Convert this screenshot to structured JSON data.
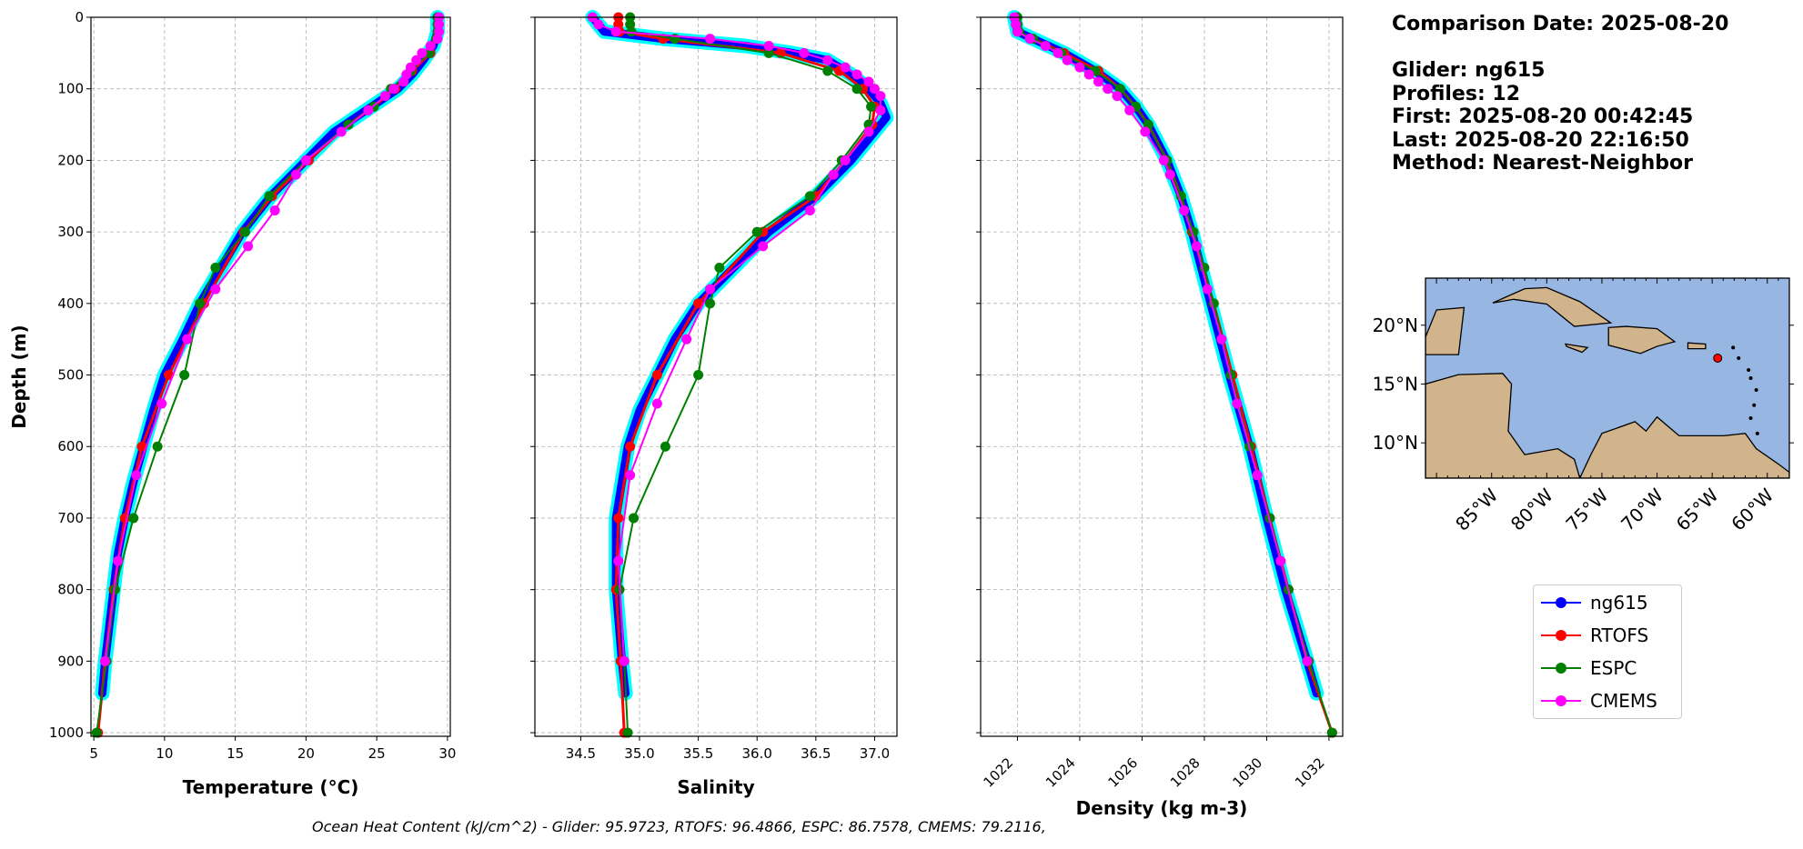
{
  "info": {
    "comparison_date": "Comparison Date: 2025-08-20",
    "glider": "Glider: ng615",
    "profiles": "Profiles: 12",
    "first": "First: 2025-08-20 00:42:45",
    "last": "Last: 2025-08-20 22:16:50",
    "method": "Method: Nearest-Neighbor"
  },
  "ohc_text": "Ocean Heat Content (kJ/cm^2) - Glider: 95.9723,  RTOFS: 96.4866,  ESPC: 86.7578,  CMEMS: 79.2116,",
  "legend": [
    {
      "name": "ng615",
      "color": "#0000ff"
    },
    {
      "name": "RTOFS",
      "color": "#ff0000"
    },
    {
      "name": "ESPC",
      "color": "#008000"
    },
    {
      "name": "CMEMS",
      "color": "#ff00ff"
    }
  ],
  "chart_data": [
    {
      "type": "line",
      "xlabel": "Temperature (°C)",
      "ylabel": "Depth (m)",
      "xlim": [
        4.8,
        30.2
      ],
      "ylim": [
        1005,
        0
      ],
      "grid": true,
      "xticks": [
        "5",
        "10",
        "15",
        "20",
        "25",
        "30"
      ],
      "yticks": [
        "0",
        "100",
        "200",
        "300",
        "400",
        "500",
        "600",
        "700",
        "800",
        "900",
        "1000"
      ],
      "series": [
        {
          "name": "ng615",
          "depth": [
            0,
            20,
            40,
            60,
            80,
            100,
            120,
            140,
            160,
            180,
            200,
            250,
            300,
            350,
            400,
            450,
            500,
            550,
            600,
            650,
            700,
            750,
            800,
            850,
            900,
            945
          ],
          "values": [
            29.3,
            29.3,
            29.0,
            28.3,
            27.5,
            26.5,
            25.0,
            23.5,
            22.0,
            21.0,
            20.0,
            17.5,
            15.5,
            14.0,
            12.5,
            11.3,
            10.0,
            9.2,
            8.5,
            7.8,
            7.2,
            6.7,
            6.4,
            6.1,
            5.8,
            5.6
          ]
        },
        {
          "name": "RTOFS",
          "depth": [
            0,
            10,
            20,
            30,
            50,
            75,
            100,
            125,
            150,
            200,
            250,
            300,
            400,
            500,
            600,
            700,
            800,
            900,
            1000
          ],
          "values": [
            29.3,
            29.3,
            29.3,
            29.2,
            28.8,
            27.5,
            26.3,
            24.8,
            23.0,
            20.2,
            17.6,
            15.6,
            12.8,
            10.3,
            8.4,
            7.2,
            6.4,
            5.8,
            5.3
          ]
        },
        {
          "name": "ESPC",
          "depth": [
            0,
            10,
            20,
            30,
            50,
            75,
            100,
            125,
            150,
            200,
            250,
            300,
            350,
            400,
            500,
            600,
            700,
            800,
            900,
            1000
          ],
          "values": [
            29.3,
            29.3,
            29.3,
            29.2,
            28.7,
            27.4,
            26.0,
            24.8,
            23.0,
            20.0,
            17.4,
            15.7,
            13.6,
            12.5,
            11.4,
            9.5,
            7.8,
            6.5,
            5.9,
            5.2
          ]
        },
        {
          "name": "CMEMS",
          "depth": [
            0,
            10,
            20,
            30,
            40,
            50,
            60,
            70,
            80,
            90,
            100,
            110,
            130,
            160,
            200,
            220,
            270,
            320,
            380,
            450,
            540,
            640,
            760,
            900
          ],
          "values": [
            29.4,
            29.4,
            29.4,
            29.3,
            28.8,
            28.2,
            27.8,
            27.4,
            27.1,
            26.9,
            26.2,
            25.6,
            24.4,
            22.5,
            20.0,
            19.3,
            17.8,
            15.9,
            13.6,
            11.6,
            9.8,
            8.0,
            6.7,
            5.8
          ]
        }
      ]
    },
    {
      "type": "line",
      "xlabel": "Salinity",
      "ylabel": "",
      "xlim": [
        34.11,
        37.19
      ],
      "ylim": [
        1005,
        0
      ],
      "grid": true,
      "xticks": [
        "34.5",
        "35.0",
        "35.5",
        "36.0",
        "36.5",
        "37.0"
      ],
      "series": [
        {
          "name": "ng615",
          "depth": [
            0,
            20,
            30,
            40,
            50,
            60,
            80,
            100,
            120,
            140,
            160,
            180,
            200,
            250,
            300,
            350,
            400,
            450,
            500,
            550,
            600,
            650,
            700,
            800,
            900,
            945
          ],
          "values": [
            34.6,
            34.7,
            35.2,
            35.9,
            36.3,
            36.6,
            36.8,
            36.95,
            37.05,
            37.1,
            37.0,
            36.9,
            36.8,
            36.5,
            36.1,
            35.8,
            35.5,
            35.3,
            35.15,
            35.0,
            34.9,
            34.85,
            34.8,
            34.8,
            34.85,
            34.88
          ]
        },
        {
          "name": "RTOFS",
          "depth": [
            0,
            10,
            20,
            30,
            50,
            75,
            100,
            125,
            150,
            200,
            250,
            300,
            400,
            500,
            600,
            700,
            800,
            900,
            1000
          ],
          "values": [
            34.82,
            34.82,
            34.83,
            35.2,
            36.2,
            36.7,
            36.9,
            37.0,
            36.98,
            36.75,
            36.5,
            36.05,
            35.5,
            35.15,
            34.92,
            34.82,
            34.8,
            34.84,
            34.87
          ]
        },
        {
          "name": "ESPC",
          "depth": [
            0,
            10,
            20,
            30,
            50,
            75,
            100,
            125,
            150,
            200,
            250,
            300,
            350,
            400,
            500,
            600,
            700,
            800,
            900,
            1000
          ],
          "values": [
            34.92,
            34.92,
            34.93,
            35.3,
            36.1,
            36.6,
            36.85,
            36.97,
            36.95,
            36.72,
            36.45,
            36.0,
            35.68,
            35.6,
            35.5,
            35.22,
            34.95,
            34.83,
            34.87,
            34.9
          ]
        },
        {
          "name": "CMEMS",
          "depth": [
            0,
            10,
            20,
            30,
            40,
            50,
            60,
            70,
            80,
            90,
            100,
            110,
            130,
            160,
            200,
            220,
            270,
            320,
            380,
            450,
            540,
            640,
            760,
            900
          ],
          "values": [
            34.6,
            34.65,
            34.8,
            35.6,
            36.1,
            36.4,
            36.6,
            36.75,
            36.85,
            36.95,
            37.0,
            37.05,
            37.05,
            36.95,
            36.75,
            36.65,
            36.45,
            36.05,
            35.6,
            35.4,
            35.15,
            34.92,
            34.82,
            34.87
          ]
        }
      ]
    },
    {
      "type": "line",
      "xlabel": "Density (kg m-3)",
      "ylabel": "",
      "xlim": [
        1020.82,
        1032.44
      ],
      "ylim": [
        1005,
        0
      ],
      "grid": true,
      "xticks": [
        "1022",
        "1024",
        "1026",
        "1028",
        "1030",
        "1032"
      ],
      "series": [
        {
          "name": "ng615",
          "depth": [
            0,
            20,
            30,
            50,
            75,
            100,
            125,
            150,
            200,
            250,
            300,
            350,
            400,
            450,
            500,
            600,
            700,
            800,
            900,
            945
          ],
          "values": [
            1021.9,
            1022.0,
            1022.5,
            1023.5,
            1024.5,
            1025.3,
            1025.8,
            1026.2,
            1026.8,
            1027.25,
            1027.6,
            1027.9,
            1028.2,
            1028.5,
            1028.8,
            1029.45,
            1030.0,
            1030.6,
            1031.3,
            1031.6
          ]
        },
        {
          "name": "RTOFS",
          "depth": [
            0,
            10,
            20,
            30,
            50,
            75,
            100,
            125,
            150,
            200,
            250,
            300,
            400,
            500,
            600,
            700,
            800,
            900,
            1000
          ],
          "values": [
            1021.95,
            1021.95,
            1022.0,
            1022.5,
            1023.5,
            1024.6,
            1025.3,
            1025.8,
            1026.2,
            1026.8,
            1027.25,
            1027.6,
            1028.3,
            1028.9,
            1029.5,
            1030.1,
            1030.7,
            1031.3,
            1032.1
          ]
        },
        {
          "name": "ESPC",
          "depth": [
            0,
            10,
            20,
            30,
            50,
            75,
            100,
            125,
            150,
            200,
            250,
            300,
            350,
            400,
            500,
            600,
            700,
            800,
            900,
            1000
          ],
          "values": [
            1022.0,
            1022.0,
            1022.05,
            1022.5,
            1023.4,
            1024.5,
            1025.3,
            1025.8,
            1026.2,
            1026.8,
            1027.25,
            1027.65,
            1028.0,
            1028.3,
            1028.85,
            1029.45,
            1030.1,
            1030.7,
            1031.35,
            1032.1
          ]
        },
        {
          "name": "CMEMS",
          "depth": [
            0,
            10,
            20,
            30,
            40,
            50,
            60,
            70,
            80,
            90,
            100,
            110,
            130,
            160,
            200,
            220,
            270,
            320,
            380,
            450,
            540,
            640,
            760,
            900
          ],
          "values": [
            1021.9,
            1021.95,
            1022.0,
            1022.4,
            1022.9,
            1023.3,
            1023.6,
            1024.0,
            1024.3,
            1024.6,
            1024.9,
            1025.2,
            1025.6,
            1026.1,
            1026.7,
            1026.9,
            1027.35,
            1027.75,
            1028.1,
            1028.55,
            1029.05,
            1029.7,
            1030.45,
            1031.3
          ]
        }
      ]
    }
  ],
  "map": {
    "lon_ticks": [
      "85°W",
      "80°W",
      "75°W",
      "70°W",
      "65°W",
      "60°W"
    ],
    "lat_ticks": [
      "20°N",
      "15°N",
      "10°N"
    ],
    "extent": [
      -91,
      -58,
      7,
      24
    ],
    "glider_position": [
      -64.5,
      17.2
    ],
    "ocean_color": "#97b6e1",
    "land_color": "#d2b48c"
  }
}
